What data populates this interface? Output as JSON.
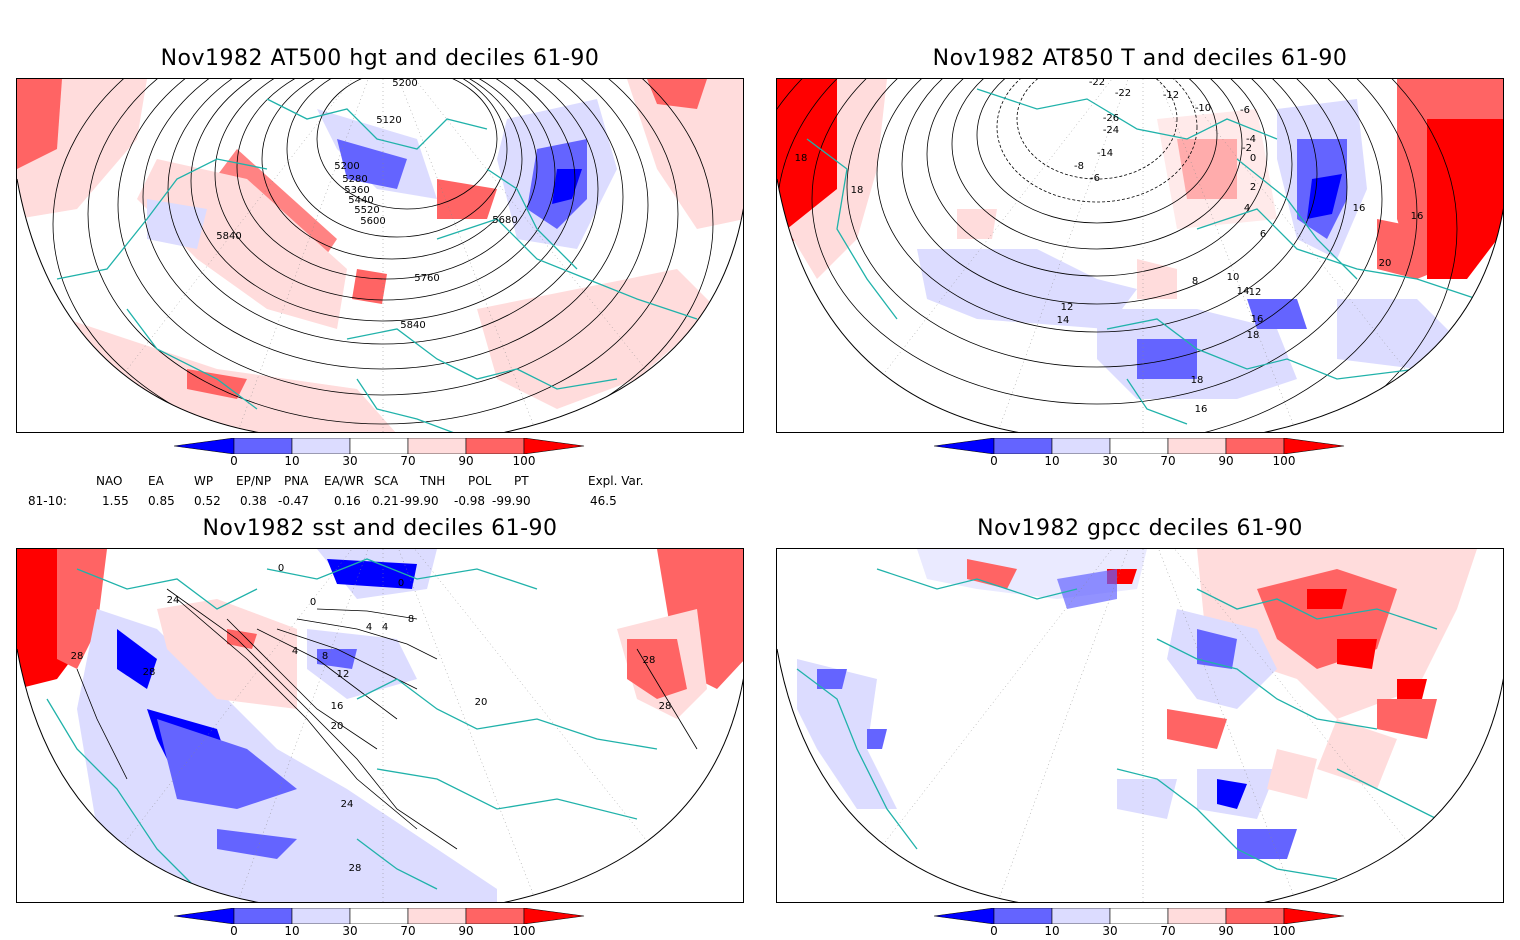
{
  "panels": [
    {
      "title": "Nov1982 AT500 hgt and deciles 61-90",
      "contours": [
        "5200",
        "5120",
        "5200",
        "5280",
        "5360",
        "5440",
        "5520",
        "5600",
        "5680",
        "5840",
        "5760",
        "5840"
      ]
    },
    {
      "title": "Nov1982 AT850 T and deciles 61-90",
      "contours": [
        "18",
        "18",
        "-22",
        "-22",
        "-26",
        "-24",
        "-12",
        "-10",
        "-6",
        "-14",
        "-8",
        "-6",
        "-4",
        "-2",
        "0",
        "2",
        "4",
        "6",
        "8",
        "10",
        "12",
        "12",
        "14",
        "14",
        "16",
        "16",
        "18",
        "18",
        "20",
        "16",
        "16"
      ]
    },
    {
      "title": "Nov1982 sst and deciles 61-90",
      "contours": [
        "0",
        "0",
        "0",
        "24",
        "28",
        "28",
        "4",
        "4",
        "8",
        "8",
        "4",
        "12",
        "16",
        "20",
        "20",
        "24",
        "28",
        "28",
        "28"
      ]
    },
    {
      "title": "Nov1982 gpcc deciles 61-90",
      "contours": []
    }
  ],
  "colorbar": {
    "labels": [
      "0",
      "10",
      "30",
      "70",
      "90",
      "100"
    ],
    "colors": [
      "#0000ff",
      "#6464ff",
      "#dcdcff",
      "#ffffff",
      "#ffdcdc",
      "#ff6464",
      "#ff0000"
    ]
  },
  "indices": {
    "headers": [
      "NAO",
      "EA",
      "WP",
      "EP/NP",
      "PNA",
      "EA/WR",
      "SCA",
      "TNH",
      "POL",
      "PT",
      "Expl. Var."
    ],
    "row_label": "81-10:",
    "values": [
      "1.55",
      "0.85",
      "0.52",
      "0.38",
      "-0.47",
      "0.16",
      "0.21",
      "-99.90",
      "-0.98",
      "-99.90",
      "46.5"
    ]
  }
}
